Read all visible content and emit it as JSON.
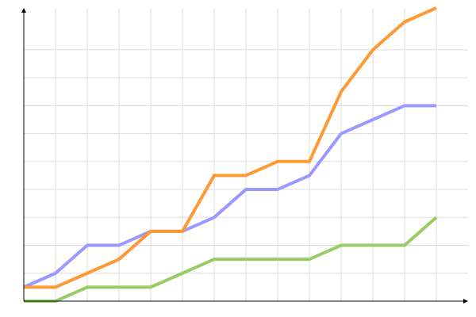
{
  "chart_data": {
    "type": "line",
    "title": "",
    "xlabel": "",
    "ylabel": "",
    "x": [
      0,
      1,
      2,
      3,
      4,
      5,
      6,
      7,
      8,
      9,
      10,
      11,
      12,
      13
    ],
    "xlim": [
      0,
      14
    ],
    "ylim": [
      0,
      21
    ],
    "y_grid_step": 2,
    "y_grid_max": 18,
    "grid": true,
    "legend": "none",
    "series": [
      {
        "color": "#9999ff",
        "values": [
          1,
          2,
          4,
          4,
          5,
          5,
          6,
          8,
          8,
          9,
          12,
          13,
          14,
          14
        ]
      },
      {
        "color": "#ff9933",
        "values": [
          1,
          1,
          2,
          3,
          5,
          5,
          9,
          9,
          10,
          10,
          15,
          18,
          20,
          21
        ]
      },
      {
        "color": "#99cc66",
        "values": [
          0,
          0,
          1,
          1,
          1,
          2,
          3,
          3,
          3,
          3,
          4,
          4,
          4,
          6
        ]
      }
    ],
    "colors": {
      "grid": "#dddddd",
      "axis": "#000000"
    }
  }
}
